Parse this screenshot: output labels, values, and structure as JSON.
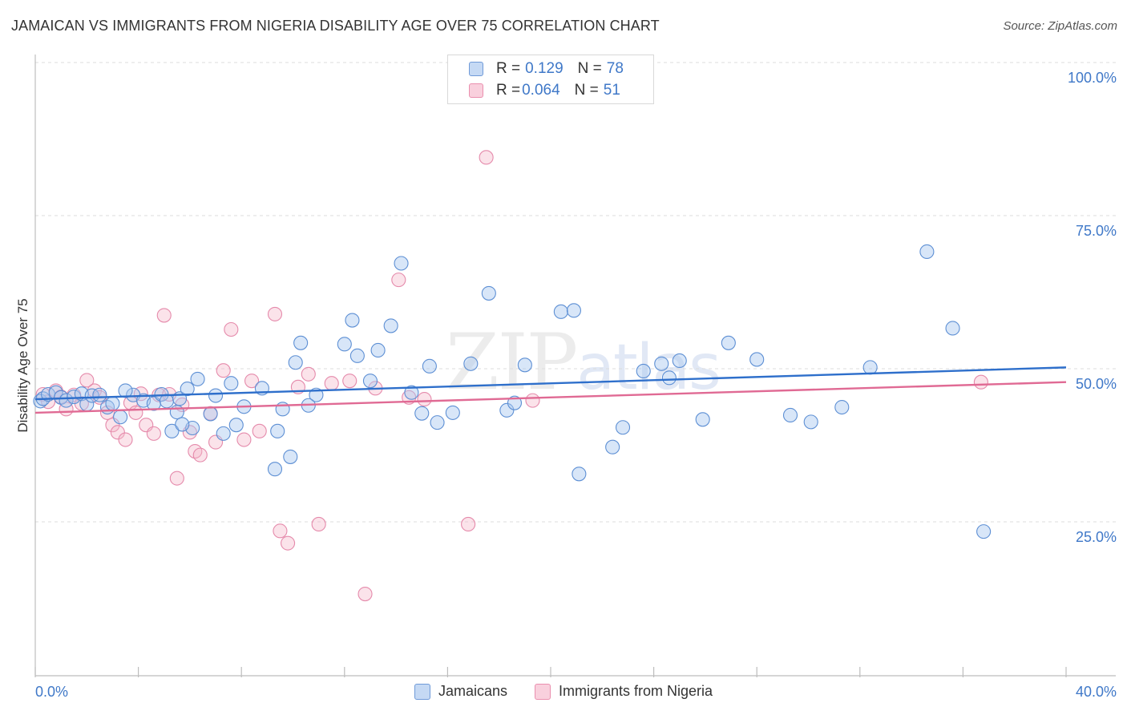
{
  "title": "JAMAICAN VS IMMIGRANTS FROM NIGERIA DISABILITY AGE OVER 75 CORRELATION CHART",
  "source": "Source: ZipAtlas.com",
  "watermark": {
    "zip": "ZIP",
    "atlas": "atlas"
  },
  "colors": {
    "jamaicans": "#a9c7ef",
    "jamaicans_line": "#2e6fcb",
    "nigeria": "#f5b8cb",
    "nigeria_line": "#e06a94",
    "tick_text": "#3f78c8"
  },
  "stats": {
    "jamaicans": {
      "r_label": "R = ",
      "r_value": "0.129",
      "n_label": "N = ",
      "n_value": "78"
    },
    "nigeria": {
      "r_label": "R = ",
      "r_value": "0.064",
      "n_label": "N = ",
      "n_value": "51"
    }
  },
  "legend": {
    "jamaicans": "Jamaicans",
    "nigeria": "Immigrants from Nigeria"
  },
  "chart_data": {
    "type": "scatter",
    "title": "JAMAICAN VS IMMIGRANTS FROM NIGERIA DISABILITY AGE OVER 75 CORRELATION CHART",
    "xlabel": "",
    "ylabel": "Disability Age Over 75",
    "xlim": [
      0,
      40
    ],
    "ylim": [
      0,
      105
    ],
    "x_tick_labels": [
      "0.0%",
      "40.0%"
    ],
    "y_ticks": [
      25,
      50,
      75,
      100
    ],
    "y_tick_labels": [
      "25.0%",
      "50.0%",
      "75.0%",
      "100.0%"
    ],
    "grid": "horizontal dashed",
    "series": [
      {
        "name": "Jamaicans",
        "trend": [
          [
            0,
            47.5
          ],
          [
            40,
            52.7
          ]
        ],
        "points": [
          [
            0.2,
            47.2
          ],
          [
            0.3,
            47.6
          ],
          [
            0.5,
            48.3
          ],
          [
            0.8,
            48.6
          ],
          [
            1.0,
            47.8
          ],
          [
            1.2,
            47.3
          ],
          [
            1.5,
            47.9
          ],
          [
            1.8,
            48.4
          ],
          [
            2.0,
            46.7
          ],
          [
            2.2,
            48.1
          ],
          [
            2.5,
            48.2
          ],
          [
            2.8,
            46.2
          ],
          [
            3.0,
            46.8
          ],
          [
            3.3,
            44.6
          ],
          [
            3.8,
            48.2
          ],
          [
            3.5,
            48.9
          ],
          [
            4.2,
            47.3
          ],
          [
            4.6,
            46.8
          ],
          [
            4.9,
            48.3
          ],
          [
            5.1,
            47.2
          ],
          [
            5.3,
            42.3
          ],
          [
            5.6,
            47.6
          ],
          [
            5.9,
            49.2
          ],
          [
            6.1,
            42.8
          ],
          [
            6.3,
            50.8
          ],
          [
            6.8,
            45.1
          ],
          [
            5.5,
            45.4
          ],
          [
            7.0,
            48.1
          ],
          [
            5.7,
            43.4
          ],
          [
            7.3,
            41.9
          ],
          [
            7.6,
            50.1
          ],
          [
            7.8,
            43.3
          ],
          [
            8.1,
            46.3
          ],
          [
            8.8,
            49.3
          ],
          [
            9.3,
            36.1
          ],
          [
            9.4,
            42.3
          ],
          [
            9.6,
            45.9
          ],
          [
            9.9,
            38.1
          ],
          [
            10.1,
            53.5
          ],
          [
            10.3,
            56.7
          ],
          [
            10.9,
            48.2
          ],
          [
            10.6,
            46.5
          ],
          [
            12.0,
            56.5
          ],
          [
            12.3,
            60.4
          ],
          [
            12.5,
            54.6
          ],
          [
            13.0,
            50.5
          ],
          [
            13.3,
            55.5
          ],
          [
            13.8,
            59.5
          ],
          [
            14.2,
            69.7
          ],
          [
            14.6,
            48.6
          ],
          [
            15.3,
            52.9
          ],
          [
            15.6,
            43.7
          ],
          [
            15.0,
            45.2
          ],
          [
            16.2,
            45.3
          ],
          [
            16.9,
            53.3
          ],
          [
            17.6,
            64.8
          ],
          [
            18.3,
            45.7
          ],
          [
            18.6,
            46.9
          ],
          [
            19.0,
            53.1
          ],
          [
            20.4,
            61.8
          ],
          [
            20.9,
            62.0
          ],
          [
            21.1,
            35.3
          ],
          [
            22.4,
            39.7
          ],
          [
            22.8,
            42.9
          ],
          [
            23.6,
            52.1
          ],
          [
            24.3,
            53.3
          ],
          [
            24.6,
            51.0
          ],
          [
            25.0,
            53.8
          ],
          [
            25.9,
            44.2
          ],
          [
            26.9,
            56.7
          ],
          [
            28.0,
            54.0
          ],
          [
            29.3,
            44.9
          ],
          [
            30.1,
            43.8
          ],
          [
            31.3,
            46.2
          ],
          [
            32.4,
            52.7
          ],
          [
            34.6,
            71.6
          ],
          [
            35.6,
            59.1
          ],
          [
            36.8,
            25.9
          ]
        ]
      },
      {
        "name": "Immigrants from Nigeria",
        "trend": [
          [
            0,
            45.3
          ],
          [
            40,
            50.3
          ]
        ],
        "points": [
          [
            0.3,
            48.3
          ],
          [
            0.5,
            47.1
          ],
          [
            0.8,
            48.9
          ],
          [
            1.0,
            47.9
          ],
          [
            1.2,
            45.9
          ],
          [
            1.5,
            48.2
          ],
          [
            1.8,
            46.8
          ],
          [
            2.0,
            50.6
          ],
          [
            2.3,
            48.9
          ],
          [
            2.5,
            47.8
          ],
          [
            2.8,
            45.3
          ],
          [
            3.0,
            43.3
          ],
          [
            3.2,
            42.1
          ],
          [
            3.5,
            40.9
          ],
          [
            3.7,
            46.9
          ],
          [
            3.9,
            45.3
          ],
          [
            4.1,
            48.4
          ],
          [
            4.3,
            43.3
          ],
          [
            4.6,
            41.9
          ],
          [
            4.8,
            48.2
          ],
          [
            5.0,
            61.2
          ],
          [
            5.2,
            48.3
          ],
          [
            5.5,
            34.6
          ],
          [
            5.7,
            46.6
          ],
          [
            6.0,
            42.1
          ],
          [
            6.2,
            39.0
          ],
          [
            6.4,
            38.4
          ],
          [
            6.8,
            45.2
          ],
          [
            7.0,
            40.5
          ],
          [
            7.3,
            52.2
          ],
          [
            7.6,
            58.9
          ],
          [
            8.1,
            40.9
          ],
          [
            8.4,
            50.5
          ],
          [
            8.7,
            42.3
          ],
          [
            9.3,
            61.4
          ],
          [
            9.5,
            26.0
          ],
          [
            9.8,
            24.0
          ],
          [
            10.2,
            49.5
          ],
          [
            10.6,
            51.6
          ],
          [
            11.0,
            27.1
          ],
          [
            11.5,
            50.1
          ],
          [
            12.2,
            50.5
          ],
          [
            12.8,
            15.7
          ],
          [
            13.2,
            49.3
          ],
          [
            14.1,
            67.0
          ],
          [
            14.5,
            47.8
          ],
          [
            15.1,
            47.5
          ],
          [
            16.8,
            27.1
          ],
          [
            17.5,
            87.0
          ],
          [
            19.3,
            47.3
          ],
          [
            36.7,
            50.3
          ]
        ]
      }
    ]
  }
}
